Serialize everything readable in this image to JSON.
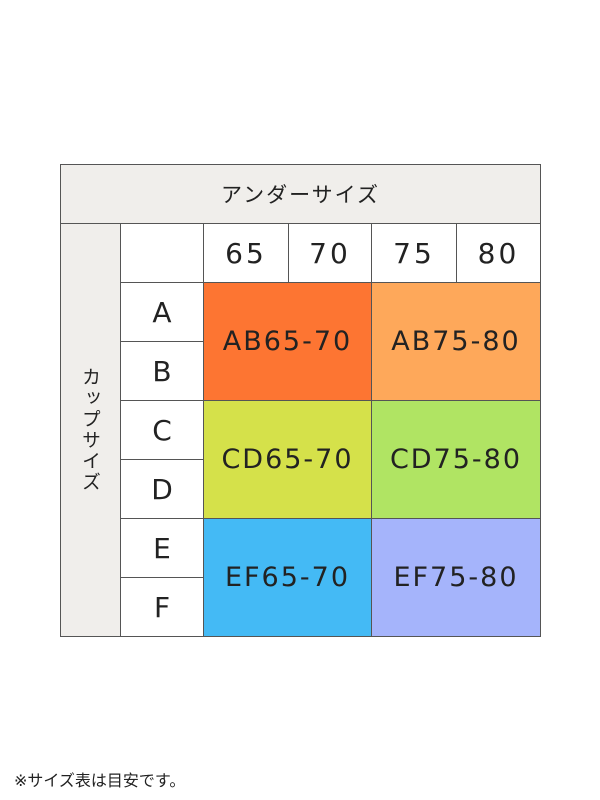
{
  "header": {
    "title": "アンダーサイズ"
  },
  "side": {
    "title": "カップサイズ"
  },
  "columns": [
    "65",
    "70",
    "75",
    "80"
  ],
  "rows": [
    "A",
    "B",
    "C",
    "D",
    "E",
    "F"
  ],
  "blocks": [
    {
      "label": "AB65-70",
      "color": "#fd7532"
    },
    {
      "label": "AB75-80",
      "color": "#fea85a"
    },
    {
      "label": "CD65-70",
      "color": "#d5e14a"
    },
    {
      "label": "CD75-80",
      "color": "#b0e463"
    },
    {
      "label": "EF65-70",
      "color": "#44baf5"
    },
    {
      "label": "EF75-80",
      "color": "#a5b4fb"
    }
  ],
  "footnote": "※サイズ表は目安です。"
}
